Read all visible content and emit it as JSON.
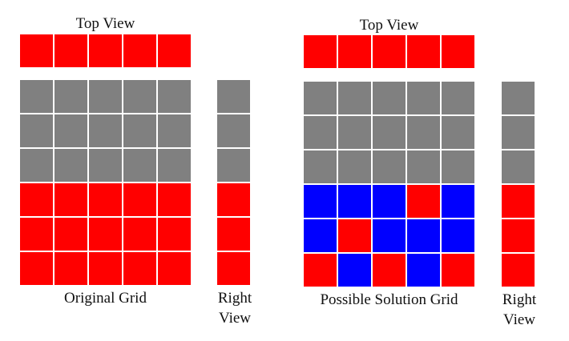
{
  "colors": {
    "R": "#ff0000",
    "G": "#808080",
    "B": "#0000ff"
  },
  "left": {
    "top_view_label": "Top View",
    "grid_label": "Original Grid",
    "right_view_label_line1": "Right",
    "right_view_label_line2": "View",
    "top_view": [
      "R",
      "R",
      "R",
      "R",
      "R"
    ],
    "grid": [
      [
        "G",
        "G",
        "G",
        "G",
        "G"
      ],
      [
        "G",
        "G",
        "G",
        "G",
        "G"
      ],
      [
        "G",
        "G",
        "G",
        "G",
        "G"
      ],
      [
        "R",
        "R",
        "R",
        "R",
        "R"
      ],
      [
        "R",
        "R",
        "R",
        "R",
        "R"
      ],
      [
        "R",
        "R",
        "R",
        "R",
        "R"
      ]
    ],
    "right_view": [
      "G",
      "G",
      "G",
      "R",
      "R",
      "R"
    ]
  },
  "right": {
    "top_view_label": "Top View",
    "grid_label": "Possible Solution Grid",
    "right_view_label_line1": "Right",
    "right_view_label_line2": "View",
    "top_view": [
      "R",
      "R",
      "R",
      "R",
      "R"
    ],
    "grid": [
      [
        "G",
        "G",
        "G",
        "G",
        "G"
      ],
      [
        "G",
        "G",
        "G",
        "G",
        "G"
      ],
      [
        "G",
        "G",
        "G",
        "G",
        "G"
      ],
      [
        "B",
        "B",
        "B",
        "R",
        "B"
      ],
      [
        "B",
        "R",
        "B",
        "B",
        "B"
      ],
      [
        "R",
        "B",
        "R",
        "B",
        "R"
      ]
    ],
    "right_view": [
      "G",
      "G",
      "G",
      "R",
      "R",
      "R"
    ]
  }
}
